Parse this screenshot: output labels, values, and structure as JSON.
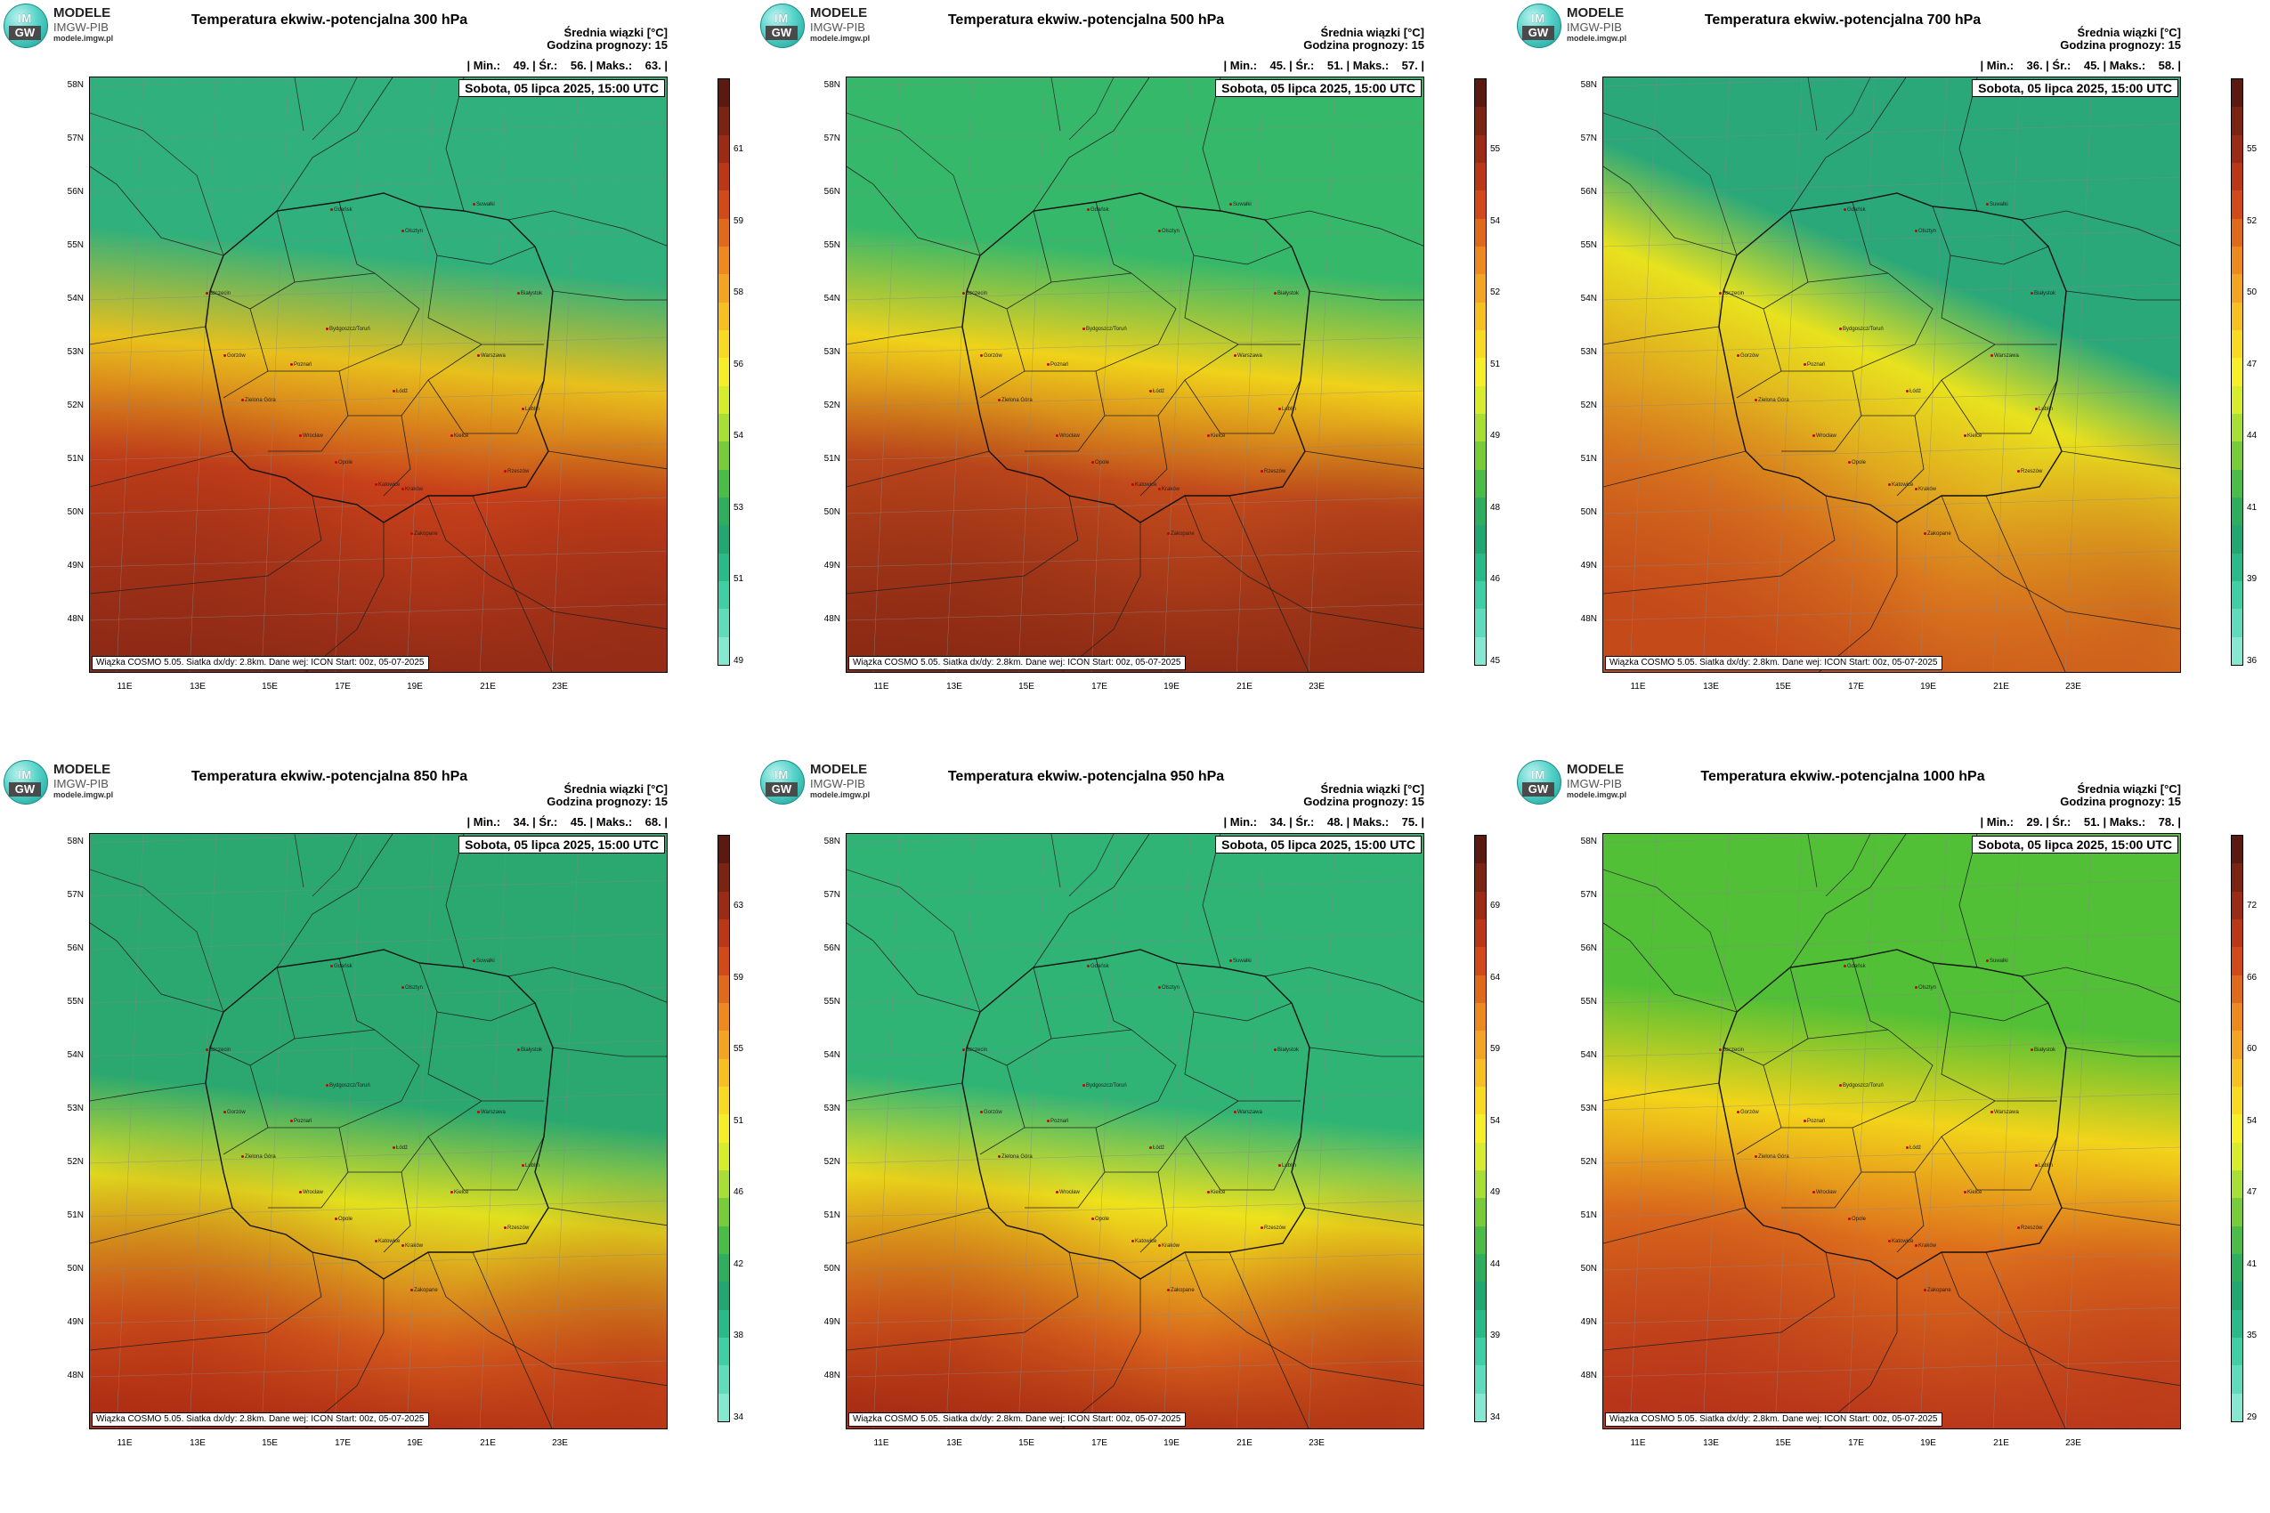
{
  "logo": {
    "im": "IM",
    "gw": "GW",
    "name": "MODELE",
    "sub": "IMGW-PIB",
    "url": "modele.imgw.pl"
  },
  "info_label": "Średnia wiązki [°C]",
  "forecast_hour": "Godzina prognozy: 15",
  "date_label": "Sobota, 05 lipca 2025, 15:00 UTC",
  "footer": "Wiązka COSMO 5.05. Siatka dx/dy: 2.8km. Dane wej: ICON Start: 00z, 05-07-2025",
  "lat_labels": [
    "58N",
    "57N",
    "56N",
    "55N",
    "54N",
    "53N",
    "52N",
    "51N",
    "50N",
    "49N",
    "48N"
  ],
  "lon_labels": [
    "11E",
    "13E",
    "15E",
    "17E",
    "19E",
    "21E",
    "23E"
  ],
  "cities": [
    "Gdańsk",
    "Olsztyn",
    "Suwałki",
    "Szczecin",
    "Białystok",
    "Bydgoszcz/Toruń",
    "Gorzów",
    "Poznań",
    "Warszawa",
    "Zielona Góra",
    "Łódź",
    "Lublin",
    "Wrocław",
    "Kielce",
    "Opole",
    "Rzeszów",
    "Katowice",
    "Kraków",
    "Zakopane"
  ],
  "panels": [
    {
      "title": "Temperatura ekwiw.-potencjalna 300 hPa",
      "stats": "| Min.:    49. | Śr.:    56. | Maks.:    63. |",
      "colorbar_ticks": [
        "61",
        "59",
        "58",
        "56",
        "54",
        "53",
        "51",
        "49"
      ],
      "field": {
        "north": "#2fb07c",
        "mid": "#e8c01c",
        "south": "#c8401a",
        "deep": "#8f2a16",
        "band": "low"
      }
    },
    {
      "title": "Temperatura ekwiw.-potencjalna 500 hPa",
      "stats": "| Min.:    45. | Śr.:    51. | Maks.:    57. |",
      "colorbar_ticks": [
        "55",
        "54",
        "52",
        "51",
        "49",
        "48",
        "46",
        "45"
      ],
      "field": {
        "north": "#36b86a",
        "mid": "#f0d21a",
        "south": "#c24a1c",
        "deep": "#8c2a14",
        "band": "low"
      }
    },
    {
      "title": "Temperatura ekwiw.-potencjalna 700 hPa",
      "stats": "| Min.:    36. | Śr.:    45. | Maks.:    58. |",
      "colorbar_ticks": [
        "55",
        "52",
        "50",
        "47",
        "44",
        "41",
        "39",
        "36"
      ],
      "field": {
        "north": "#2aa87a",
        "mid": "#e8e21e",
        "south": "#d9761e",
        "deep": "#c44a1a",
        "band": "diag"
      }
    },
    {
      "title": "Temperatura ekwiw.-potencjalna 850 hPa",
      "stats": "| Min.:    34. | Śr.:    45. | Maks.:    68. |",
      "colorbar_ticks": [
        "63",
        "59",
        "55",
        "51",
        "46",
        "42",
        "38",
        "34"
      ],
      "field": {
        "north": "#2aa870",
        "mid": "#e2e01e",
        "south": "#d45a1c",
        "deep": "#b02e14",
        "band": "mixed"
      }
    },
    {
      "title": "Temperatura ekwiw.-potencjalna 950 hPa",
      "stats": "| Min.:    34. | Śr.:    48. | Maks.:    75. |",
      "colorbar_ticks": [
        "69",
        "64",
        "59",
        "54",
        "49",
        "44",
        "39",
        "34"
      ],
      "field": {
        "north": "#30b476",
        "mid": "#eee21c",
        "south": "#d8621c",
        "deep": "#aa2e14",
        "band": "mixed"
      }
    },
    {
      "title": "Temperatura ekwiw.-potencjalna 1000 hPa",
      "stats": "| Min.:    29. | Śr.:    51. | Maks.:    78. |",
      "colorbar_ticks": [
        "72",
        "66",
        "60",
        "54",
        "47",
        "41",
        "35",
        "29"
      ],
      "field": {
        "north": "#52c036",
        "mid": "#f2d41a",
        "south": "#de701c",
        "deep": "#b8341a",
        "band": "low"
      }
    }
  ]
}
